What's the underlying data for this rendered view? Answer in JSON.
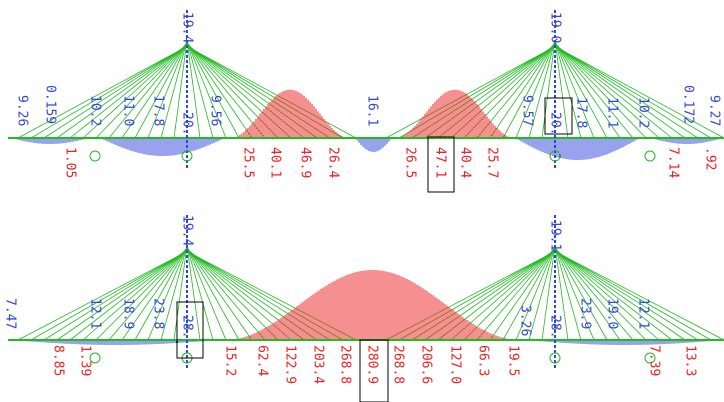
{
  "panels": [
    {
      "upper_labels": [
        "9.26",
        "0.159",
        "10.2",
        "11.0",
        "17.8",
        "19.4",
        "20.",
        "9.56",
        "16.1",
        "9.57",
        "19.0",
        "20.",
        "17.8",
        "11.1",
        "10.2",
        "0.172",
        "9.27"
      ],
      "lower_labels": [
        "1.05",
        "25.5",
        "40.1",
        "46.9",
        "26.4",
        "26.5",
        "47.1",
        "40.4",
        "25.7",
        "7.14",
        ".92"
      ]
    },
    {
      "upper_labels": [
        "7.47",
        "12.1",
        "18.9",
        "23.8",
        "19.4",
        "28.",
        "3.26",
        "19.1",
        "28.",
        "23.9",
        "19.0",
        "12.1"
      ],
      "lower_labels": [
        "8.85",
        "1.39",
        "15.2",
        "62.4",
        "122.9",
        "203.4",
        "268.8",
        "280.9",
        "268.8",
        "206.6",
        "127.0",
        "66.3",
        "19.5",
        "7.39",
        "13.3"
      ]
    }
  ]
}
